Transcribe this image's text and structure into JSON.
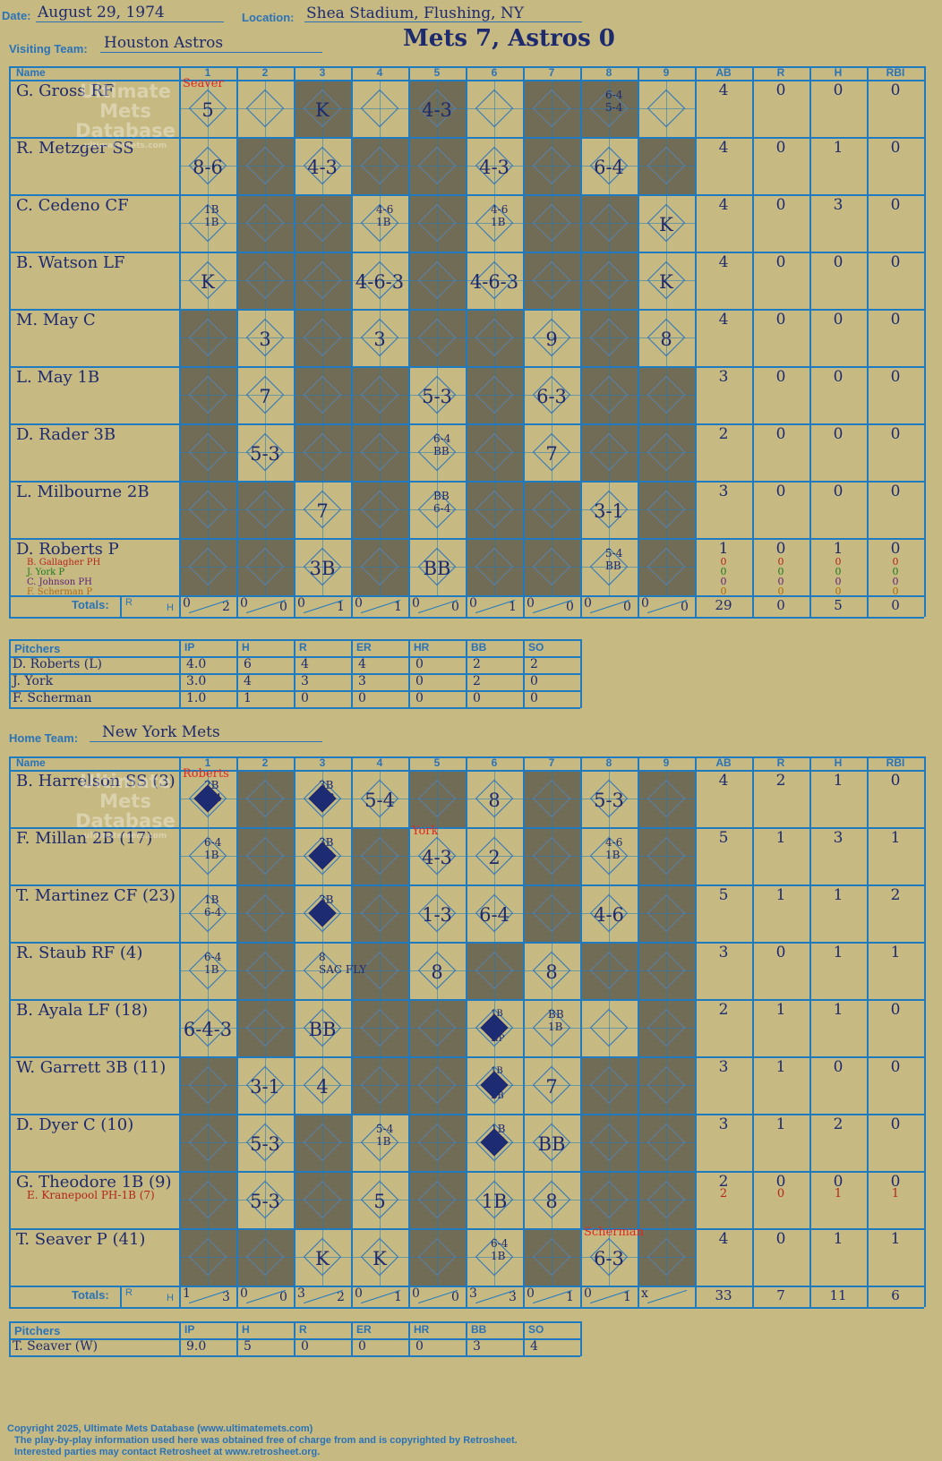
{
  "header": {
    "date_label": "Date:",
    "date": "August 29, 1974",
    "location_label": "Location:",
    "location": "Shea Stadium, Flushing, NY",
    "visiting_label": "Visiting Team:",
    "visiting_team": "Houston Astros",
    "score": "Mets 7, Astros 0",
    "home_label": "Home Team:",
    "home_team": "New York Mets"
  },
  "watermark": {
    "line1": "Ultimate",
    "line2": "Mets",
    "line3": "Database",
    "line4": "ultimatemets.com"
  },
  "columns": {
    "name": "Name",
    "innings": [
      "1",
      "2",
      "3",
      "4",
      "5",
      "6",
      "7",
      "8",
      "9"
    ],
    "stats": [
      "AB",
      "R",
      "H",
      "RBI"
    ],
    "totals_label": "Totals:",
    "r": "R",
    "h": "H"
  },
  "visitors": {
    "players": [
      {
        "name": "G. Gross RF",
        "ab": "4",
        "r": "0",
        "h": "0",
        "rbi": "0"
      },
      {
        "name": "R. Metzger SS",
        "ab": "4",
        "r": "0",
        "h": "1",
        "rbi": "0"
      },
      {
        "name": "C. Cedeno CF",
        "ab": "4",
        "r": "0",
        "h": "3",
        "rbi": "0"
      },
      {
        "name": "B. Watson LF",
        "ab": "4",
        "r": "0",
        "h": "0",
        "rbi": "0"
      },
      {
        "name": "M. May C",
        "ab": "4",
        "r": "0",
        "h": "0",
        "rbi": "0"
      },
      {
        "name": "L. May 1B",
        "ab": "3",
        "r": "0",
        "h": "0",
        "rbi": "0"
      },
      {
        "name": "D. Rader 3B",
        "ab": "2",
        "r": "0",
        "h": "0",
        "rbi": "0"
      },
      {
        "name": "L. Milbourne 2B",
        "ab": "3",
        "r": "0",
        "h": "0",
        "rbi": "0"
      },
      {
        "name": "D. Roberts P",
        "ab": "1",
        "r": "0",
        "h": "1",
        "rbi": "0"
      }
    ],
    "subs": [
      {
        "name": "B. Gallagher PH",
        "color": "#b3261e"
      },
      {
        "name": "J. York P",
        "color": "#1b7a1b"
      },
      {
        "name": "C. Johnson PH",
        "color": "#5a1f7a"
      },
      {
        "name": "F. Scherman P",
        "color": "#b06a10"
      }
    ],
    "inning_totals": [
      [
        "0",
        "2"
      ],
      [
        "0",
        "0"
      ],
      [
        "0",
        "1"
      ],
      [
        "0",
        "1"
      ],
      [
        "0",
        "0"
      ],
      [
        "0",
        "1"
      ],
      [
        "0",
        "0"
      ],
      [
        "0",
        "0"
      ],
      [
        "0",
        "0"
      ]
    ],
    "totals": {
      "ab": "29",
      "r": "0",
      "h": "5",
      "rbi": "0"
    },
    "pitchers_label": "Pitchers",
    "pitching_headers": [
      "IP",
      "H",
      "R",
      "ER",
      "HR",
      "BB",
      "SO"
    ],
    "pitchers": [
      {
        "name": "D. Roberts (L)",
        "stats": [
          "4.0",
          "6",
          "4",
          "4",
          "0",
          "2",
          "2"
        ]
      },
      {
        "name": "J. York",
        "stats": [
          "3.0",
          "4",
          "3",
          "3",
          "0",
          "2",
          "0"
        ]
      },
      {
        "name": "F. Scherman",
        "stats": [
          "1.0",
          "1",
          "0",
          "0",
          "0",
          "0",
          "0"
        ]
      }
    ]
  },
  "home": {
    "players": [
      {
        "name": "B. Harrelson SS (3)",
        "ab": "4",
        "r": "2",
        "h": "1",
        "rbi": "0"
      },
      {
        "name": "F. Millan 2B (17)",
        "ab": "5",
        "r": "1",
        "h": "3",
        "rbi": "1"
      },
      {
        "name": "T. Martinez CF (23)",
        "ab": "5",
        "r": "1",
        "h": "1",
        "rbi": "2"
      },
      {
        "name": "R. Staub RF (4)",
        "ab": "3",
        "r": "0",
        "h": "1",
        "rbi": "1"
      },
      {
        "name": "B. Ayala LF (18)",
        "ab": "2",
        "r": "1",
        "h": "1",
        "rbi": "0"
      },
      {
        "name": "W. Garrett 3B (11)",
        "ab": "3",
        "r": "1",
        "h": "0",
        "rbi": "0"
      },
      {
        "name": "D. Dyer C (10)",
        "ab": "3",
        "r": "1",
        "h": "2",
        "rbi": "0"
      },
      {
        "name": "G. Theodore 1B (9)",
        "ab": "2",
        "r": "0",
        "h": "0",
        "rbi": "0"
      },
      {
        "name": "T. Seaver P (41)",
        "ab": "4",
        "r": "0",
        "h": "1",
        "rbi": "1"
      }
    ],
    "subs": [
      {
        "name": "E. Kranepool PH-1B (7)",
        "color": "#b3261e",
        "ab": "2",
        "r": "0",
        "h": "1",
        "rbi": "1"
      }
    ],
    "inning_totals": [
      [
        "1",
        "3"
      ],
      [
        "0",
        "0"
      ],
      [
        "3",
        "2"
      ],
      [
        "0",
        "1"
      ],
      [
        "0",
        "0"
      ],
      [
        "3",
        "3"
      ],
      [
        "0",
        "1"
      ],
      [
        "0",
        "1"
      ],
      [
        "x",
        ""
      ]
    ],
    "totals": {
      "ab": "33",
      "r": "7",
      "h": "11",
      "rbi": "6"
    },
    "pitchers_label": "Pitchers",
    "pitching_headers": [
      "IP",
      "H",
      "R",
      "ER",
      "HR",
      "BB",
      "SO"
    ],
    "pitchers": [
      {
        "name": "T. Seaver (W)",
        "stats": [
          "9.0",
          "5",
          "0",
          "0",
          "0",
          "3",
          "4"
        ]
      }
    ]
  },
  "pitcher_markers": {
    "v1": "Seaver",
    "h1": "Roberts",
    "h2": "York",
    "h3": "Scherman"
  },
  "footer": {
    "line1": "Copyright 2025, Ultimate Mets Database (www.ultimatemets.com)",
    "line2": "The play-by-play information used here was obtained free of charge from and is copyrighted by Retrosheet.",
    "line3": "Interested parties may contact Retrosheet at www.retrosheet.org."
  },
  "plays": {
    "visitors": [
      [
        "5",
        "",
        "K",
        "",
        "4-3",
        "",
        "",
        "6-4|5-4",
        ""
      ],
      [
        "8-6",
        "",
        "4-3",
        "",
        "",
        "4-3",
        "",
        "6-4",
        ""
      ],
      [
        "1B|1B",
        "",
        "",
        "4-6|1B",
        "",
        "4-6|1B",
        "",
        "",
        "K"
      ],
      [
        "K",
        "",
        "",
        "4-6-3",
        "",
        "4-6-3",
        "",
        "",
        "K"
      ],
      [
        "",
        "3",
        "",
        "3",
        "",
        "",
        "9",
        "",
        "8"
      ],
      [
        "",
        "7",
        "",
        "",
        "5-3",
        "",
        "6-3",
        "",
        ""
      ],
      [
        "",
        "5-3",
        "",
        "",
        "6-4|BB",
        "",
        "7",
        "",
        ""
      ],
      [
        "",
        "",
        "7",
        "",
        "BB|6-4",
        "",
        "",
        "3-1",
        ""
      ],
      [
        "",
        "",
        "3B",
        "",
        "BB",
        "",
        "",
        "5-4|BB",
        ""
      ]
    ],
    "home": [
      [
        "2B|6-4",
        "",
        "3B|BB",
        "5-4",
        "",
        "8",
        "",
        "5-3",
        ""
      ],
      [
        "6-4|1B",
        "",
        "3B|3B",
        "",
        "4-3",
        "2",
        "",
        "4-6|1B",
        ""
      ],
      [
        "1B|6-4",
        "",
        "3B|8",
        "",
        "1-3",
        "6-4",
        "",
        "4-6",
        ""
      ],
      [
        "6-4|1B",
        "",
        "8|SAC FLY",
        "",
        "8",
        "",
        "8",
        "",
        ""
      ],
      [
        "6-4-3",
        "",
        "BB",
        "",
        "",
        "1B|BB|HP",
        "BB|1B",
        "",
        ""
      ],
      [
        "",
        "3-1",
        "4",
        "",
        "",
        "1B|1B|BB",
        "7",
        "",
        ""
      ],
      [
        "",
        "5-3",
        "",
        "5-4|1B",
        "",
        "1B|1B",
        "BB",
        "",
        ""
      ],
      [
        "",
        "5-3",
        "",
        "5",
        "",
        "1B",
        "8",
        "",
        ""
      ],
      [
        "",
        "",
        "K",
        "K",
        "",
        "6-4|1B",
        "",
        "6-3",
        ""
      ]
    ]
  }
}
